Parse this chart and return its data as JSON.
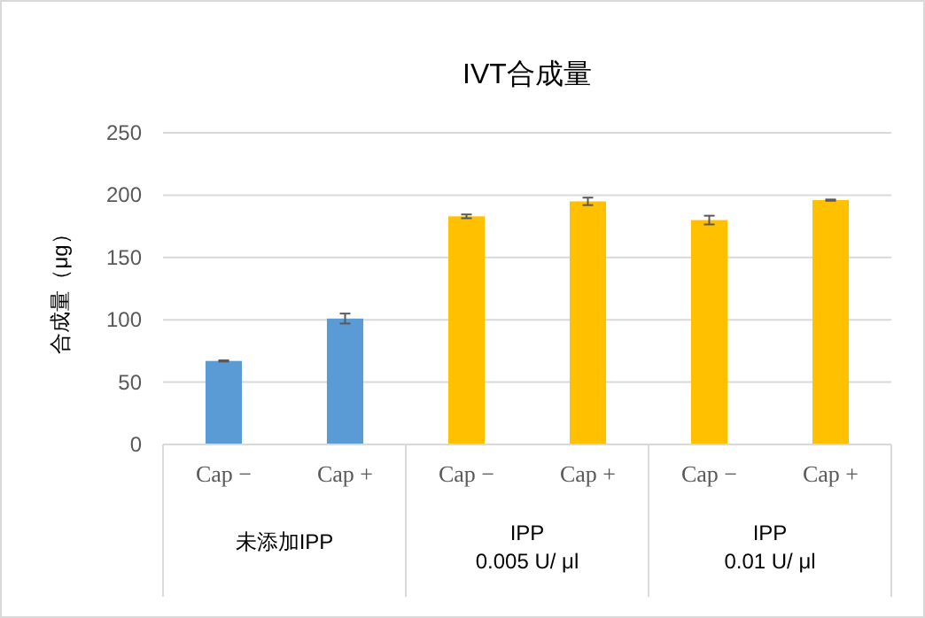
{
  "chart_data": {
    "type": "bar",
    "title": "IVT合成量",
    "ylabel": "合成量（μg）",
    "categories": [
      "Cap −",
      "Cap +",
      "Cap −",
      "Cap +",
      "Cap −",
      "Cap +"
    ],
    "values": [
      67,
      101,
      183,
      195,
      180,
      196
    ],
    "errors": [
      0.5,
      4,
      1.5,
      3,
      3.5,
      0.5
    ],
    "colors": [
      "#5b9bd5",
      "#5b9bd5",
      "#ffc000",
      "#ffc000",
      "#ffc000",
      "#ffc000"
    ],
    "ylim": [
      0,
      250
    ],
    "yticks": [
      0,
      50,
      100,
      150,
      200,
      250
    ],
    "grid": "y",
    "annotations": [
      "未添加IPP",
      "IPP\n0.005 U/ μl",
      "IPP\n0.01 U/ μl"
    ]
  }
}
